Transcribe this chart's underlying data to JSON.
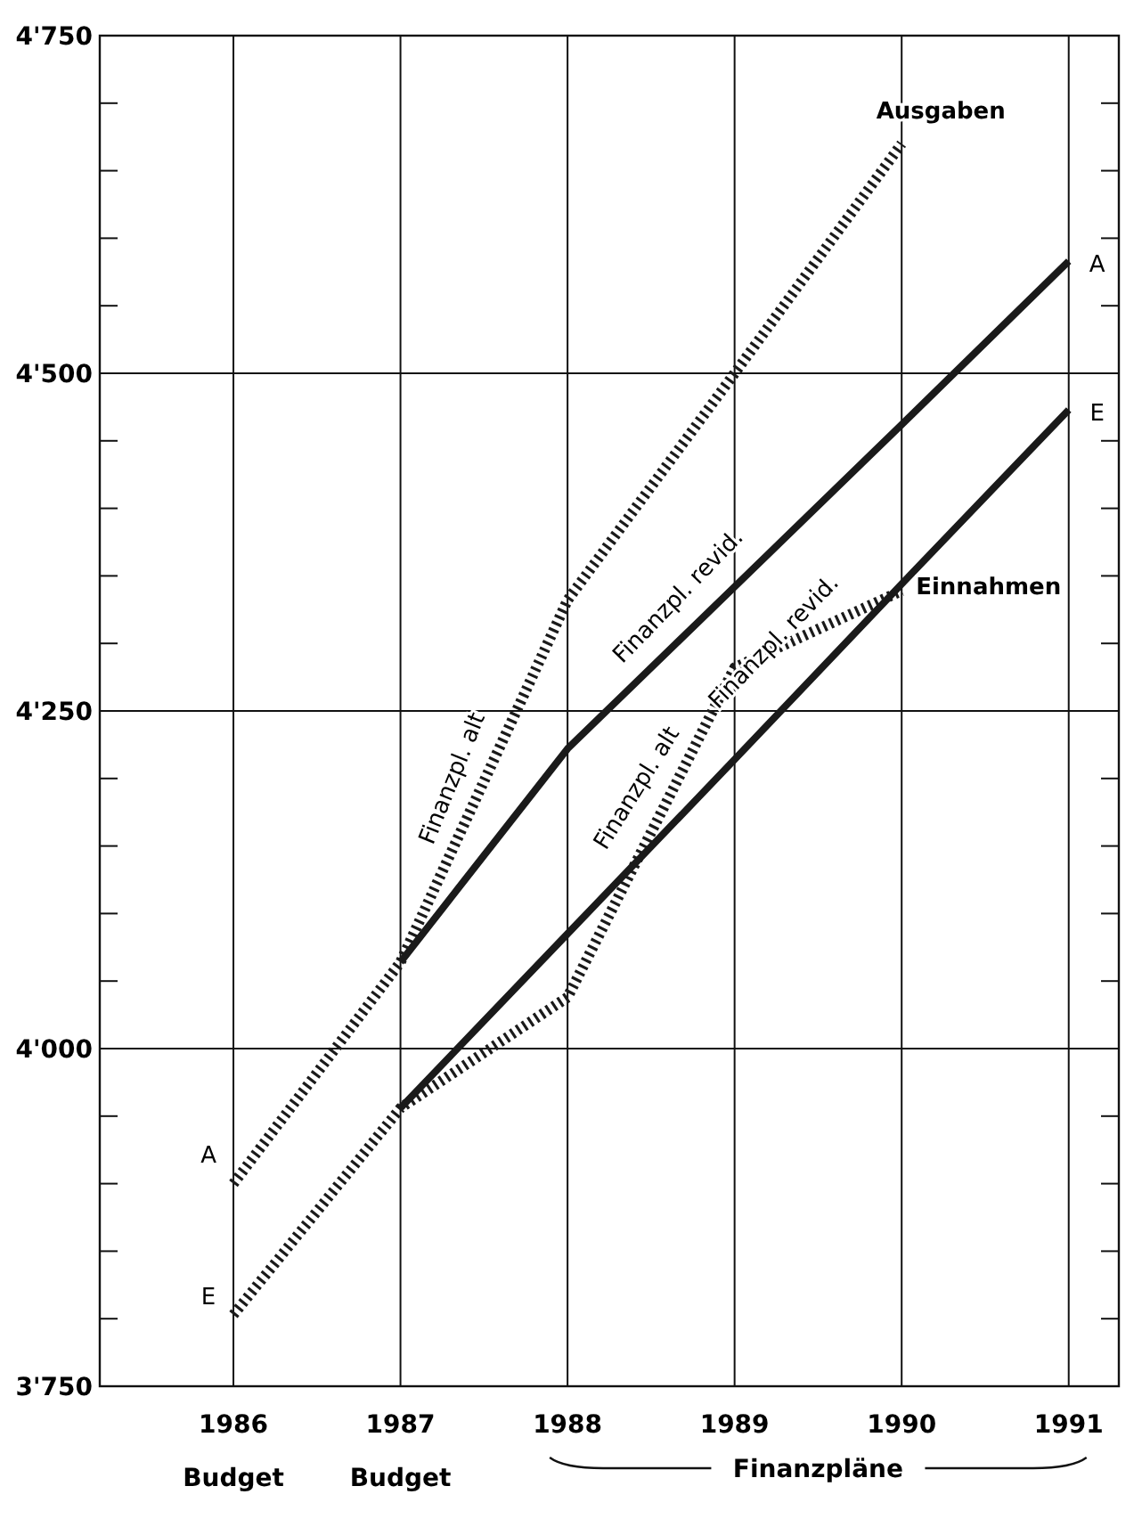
{
  "chart_data": {
    "type": "line",
    "x": [
      1986,
      1987,
      1988,
      1989,
      1990,
      1991
    ],
    "xlim": [
      1985.2,
      1991.3
    ],
    "xticks": [
      1986,
      1987,
      1988,
      1989,
      1990,
      1991
    ],
    "ylim": [
      3750,
      4750
    ],
    "yticks": [
      {
        "value": 3750,
        "label": "3'750"
      },
      {
        "value": 3800,
        "label": null
      },
      {
        "value": 3850,
        "label": null
      },
      {
        "value": 3900,
        "label": null
      },
      {
        "value": 3950,
        "label": null
      },
      {
        "value": 4000,
        "label": "4'000"
      },
      {
        "value": 4050,
        "label": null
      },
      {
        "value": 4100,
        "label": null
      },
      {
        "value": 4150,
        "label": null
      },
      {
        "value": 4200,
        "label": null
      },
      {
        "value": 4250,
        "label": "4'250"
      },
      {
        "value": 4300,
        "label": null
      },
      {
        "value": 4350,
        "label": null
      },
      {
        "value": 4400,
        "label": null
      },
      {
        "value": 4450,
        "label": null
      },
      {
        "value": 4500,
        "label": "4'500"
      },
      {
        "value": 4550,
        "label": null
      },
      {
        "value": 4600,
        "label": null
      },
      {
        "value": 4650,
        "label": null
      },
      {
        "value": 4700,
        "label": null
      },
      {
        "value": 4750,
        "label": "4'750"
      }
    ],
    "grid": true,
    "legend": false,
    "marker": "none",
    "series": [
      {
        "color": "#1a1a1a",
        "line_style": "dotted",
        "values": [
          3900,
          4064,
          4332,
          4500,
          4670,
          null
        ]
      },
      {
        "color": "#1a1a1a",
        "line_style": "solid",
        "values": [
          null,
          4064,
          4222,
          4342,
          4462,
          4583
        ]
      },
      {
        "color": "#1a1a1a",
        "line_style": "dotted",
        "values": [
          3803,
          3956,
          4038,
          4282,
          4339,
          null
        ]
      },
      {
        "color": "#1a1a1a",
        "line_style": "solid",
        "values": [
          null,
          3956,
          4085,
          4214,
          4344,
          4473
        ]
      }
    ],
    "annotations": [
      {
        "text": "Ausgaben",
        "x": 1990,
        "y": 4670
      },
      {
        "text": "Einnahmen",
        "x": 1990,
        "y": 4339
      },
      {
        "text": "A",
        "x": 1986,
        "y": 3900
      },
      {
        "text": "E",
        "x": 1986,
        "y": 3803
      },
      {
        "text": "A",
        "x": 1991,
        "y": 4583
      },
      {
        "text": "E",
        "x": 1991,
        "y": 4473
      },
      {
        "text": "Finanzpl. alt",
        "x": 1987.5,
        "y": 4198
      },
      {
        "text": "Finanzpl. revid.",
        "x": 1988.8,
        "y": 4318
      },
      {
        "text": "Finanzpl. alt",
        "x": 1988.6,
        "y": 4190
      },
      {
        "text": "Finanzpl. revid.",
        "x": 1989.5,
        "y": 4279
      },
      "Budget",
      "Budget",
      "Finanzpläne"
    ]
  }
}
